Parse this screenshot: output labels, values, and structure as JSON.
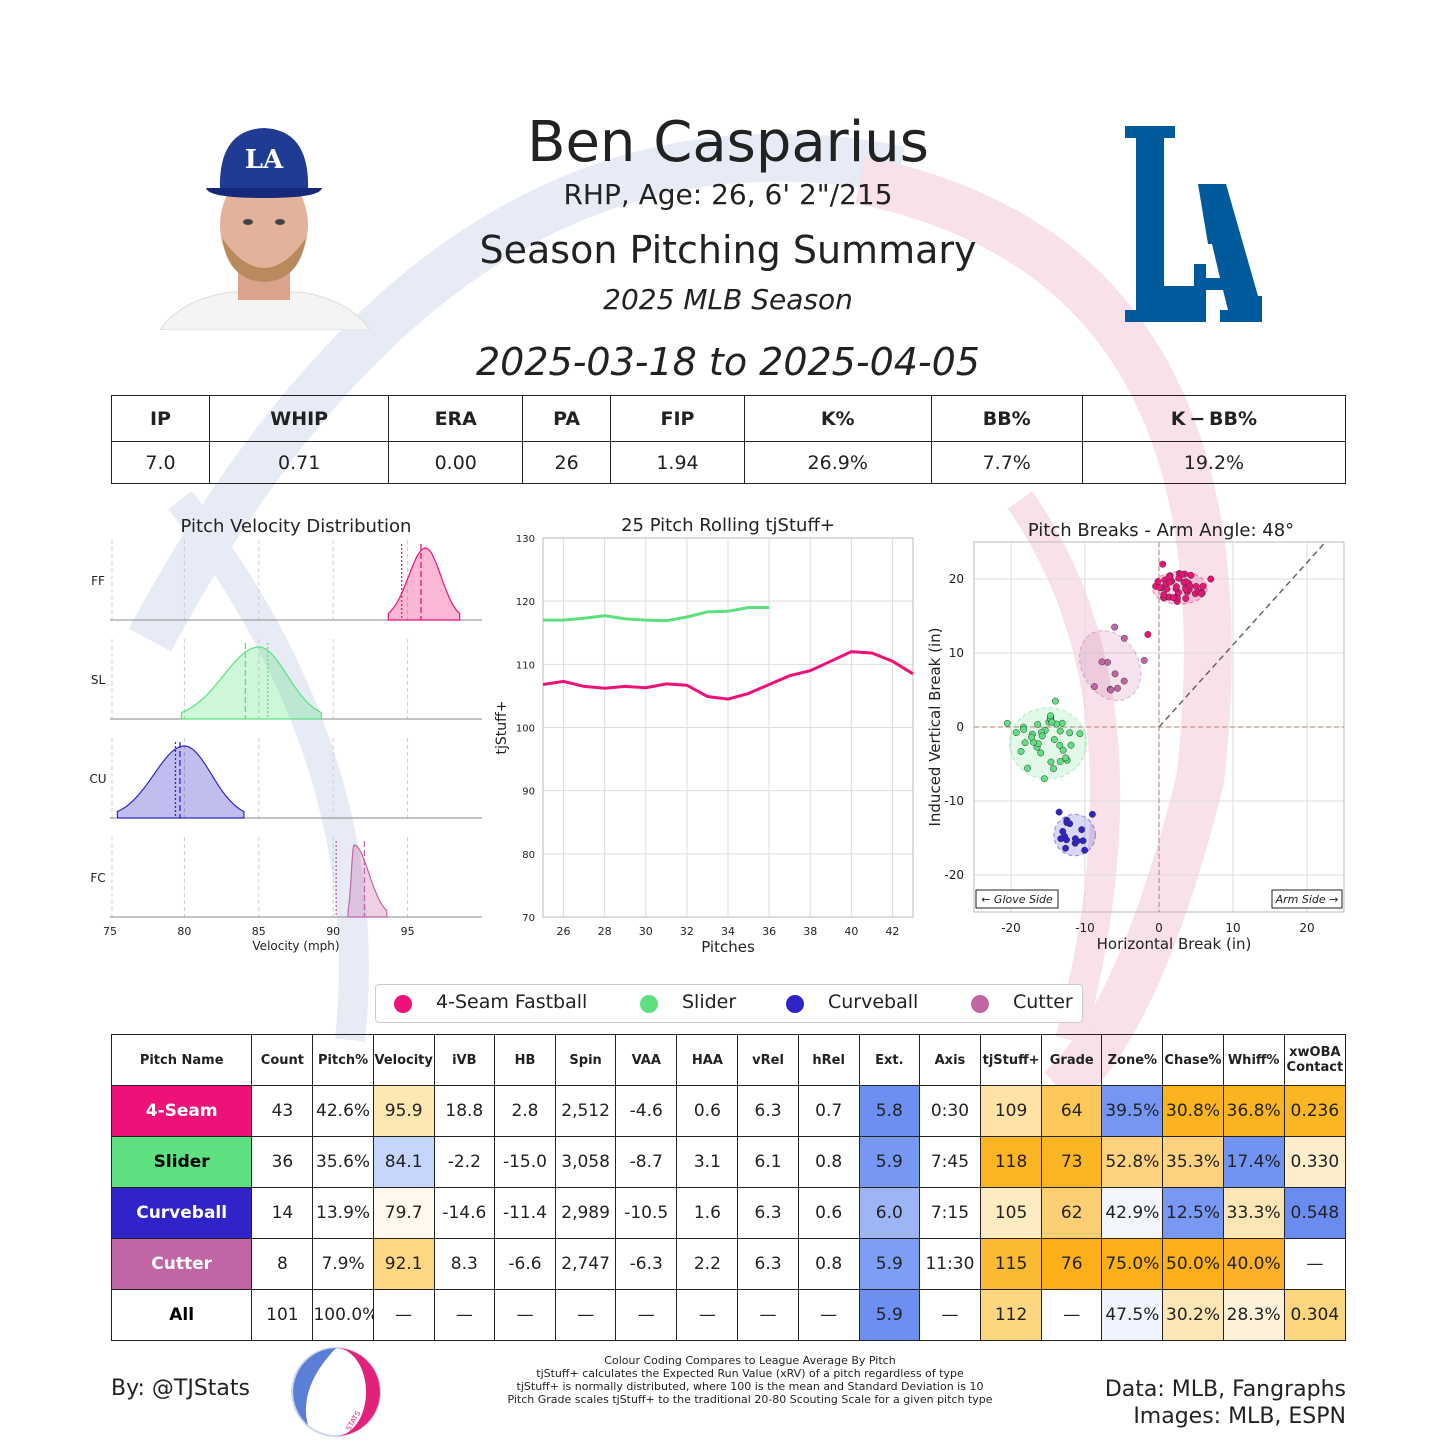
{
  "header": {
    "name": "Ben Casparius",
    "bio": "RHP, Age: 26, 6' 2\"/215",
    "summary": "Season Pitching Summary",
    "season": "2025 MLB Season",
    "date_range": "2025-03-18 to 2025-04-05",
    "team_logo_text": "LA",
    "headshot_cap_text": "LA"
  },
  "colors": {
    "fastball": "#ee1177",
    "slider": "#5de07f",
    "curveball": "#3024c9",
    "cutter": "#c265a5",
    "high": "#fab01a",
    "low": "#6b8ff0"
  },
  "season_stats": {
    "headers": [
      "IP",
      "WHIP",
      "ERA",
      "PA",
      "FIP",
      "K%",
      "BB%",
      "K − BB%"
    ],
    "values": [
      "7.0",
      "0.71",
      "0.00",
      "26",
      "1.94",
      "26.9%",
      "7.7%",
      "19.2%"
    ]
  },
  "chart_data": [
    {
      "type": "area",
      "title": "Pitch Velocity Distribution",
      "xlabel": "Velocity (mph)",
      "xlim": [
        75,
        100
      ],
      "xticks": [
        "75",
        "80",
        "85",
        "90",
        "95"
      ],
      "series": [
        {
          "name": "FF",
          "color": "#ee1177",
          "min": 93.7,
          "max": 98.5,
          "peak": 96.2,
          "mean": 95.9,
          "league": 94.6
        },
        {
          "name": "SL",
          "color": "#5de07f",
          "min": 79.8,
          "max": 89.2,
          "peak": 85.0,
          "mean": 84.1,
          "league": 85.6
        },
        {
          "name": "CU",
          "color": "#3024c9",
          "min": 75.5,
          "max": 84.0,
          "peak": 80.0,
          "mean": 79.7,
          "league": 79.4
        },
        {
          "name": "FC",
          "color": "#c265a5",
          "min": 91.0,
          "max": 93.6,
          "peak": 91.4,
          "mean": 92.1,
          "league": 90.2
        }
      ]
    },
    {
      "type": "line",
      "title": "25 Pitch Rolling tjStuff+",
      "xlabel": "Pitches",
      "ylabel": "tjStuff+",
      "xlim": [
        25,
        43
      ],
      "ylim": [
        70,
        130
      ],
      "xticks": [
        "26",
        "28",
        "30",
        "32",
        "34",
        "36",
        "38",
        "40",
        "42"
      ],
      "yticks": [
        "70",
        "80",
        "90",
        "100",
        "110",
        "120",
        "130"
      ],
      "series": [
        {
          "name": "Slider",
          "color": "#5de07f",
          "x": [
            25,
            26,
            27,
            28,
            29,
            30,
            31,
            32,
            33,
            34,
            35,
            36
          ],
          "y": [
            117.0,
            117.0,
            117.3,
            117.7,
            117.2,
            117.0,
            116.9,
            117.5,
            118.3,
            118.4,
            119.0,
            119.0
          ]
        },
        {
          "name": "4-Seam Fastball",
          "color": "#ee1177",
          "x": [
            25,
            26,
            27,
            28,
            29,
            30,
            31,
            32,
            33,
            34,
            35,
            36,
            37,
            38,
            39,
            40,
            41,
            42,
            43
          ],
          "y": [
            106.8,
            107.3,
            106.5,
            106.2,
            106.5,
            106.3,
            106.9,
            106.7,
            104.9,
            104.5,
            105.4,
            106.8,
            108.2,
            109.0,
            110.5,
            112.0,
            111.8,
            110.5,
            108.5
          ]
        }
      ]
    },
    {
      "type": "scatter",
      "title": "Pitch Breaks - Arm Angle: 48°",
      "xlabel": "Horizontal Break (in)",
      "ylabel": "Induced Vertical Break (in)",
      "xlim": [
        -25,
        25
      ],
      "ylim": [
        -25,
        25
      ],
      "xticks": [
        "-20",
        "-10",
        "0",
        "10",
        "20"
      ],
      "yticks": [
        "-20",
        "-10",
        "0",
        "10",
        "20"
      ],
      "annotations": [
        "← Glove Side",
        "Arm Side →"
      ],
      "series": [
        {
          "name": "4-Seam Fastball",
          "color": "#ee1177",
          "center": [
            2.8,
            18.8
          ],
          "spread": [
            3.7,
            2.2
          ],
          "n": 43,
          "seed": 3,
          "extra": [
            [
              -1.5,
              12.5
            ],
            [
              7.0,
              20.0
            ],
            [
              0.5,
              22.0
            ]
          ]
        },
        {
          "name": "Slider",
          "color": "#5de07f",
          "center": [
            -15.0,
            -2.2
          ],
          "spread": [
            5.2,
            4.8
          ],
          "n": 36,
          "seed": 7,
          "extra": [
            [
              -20.5,
              0.5
            ],
            [
              -14.0,
              3.5
            ],
            [
              -15.5,
              -7.0
            ]
          ]
        },
        {
          "name": "Curveball",
          "color": "#3024c9",
          "center": [
            -11.4,
            -14.6
          ],
          "spread": [
            2.8,
            2.8
          ],
          "n": 14,
          "seed": 11,
          "extra": [
            [
              -13.5,
              -11.5
            ],
            [
              -9.0,
              -11.8
            ]
          ]
        },
        {
          "name": "Cutter",
          "color": "#c265a5",
          "center": [
            -6.6,
            8.3
          ],
          "spread": [
            3.8,
            5.0
          ],
          "n": 8,
          "seed": 5,
          "extra": [
            [
              -6.0,
              13.5
            ],
            [
              -2.0,
              9.0
            ],
            [
              -6.5,
              5.0
            ]
          ]
        }
      ]
    }
  ],
  "legend": [
    {
      "label": "4-Seam Fastball",
      "color": "#ee1177"
    },
    {
      "label": "Slider",
      "color": "#5de07f"
    },
    {
      "label": "Curveball",
      "color": "#3024c9"
    },
    {
      "label": "Cutter",
      "color": "#c265a5"
    }
  ],
  "pitch_table": {
    "headers": [
      "Pitch Name",
      "Count",
      "Pitch%",
      "Velocity",
      "iVB",
      "HB",
      "Spin",
      "VAA",
      "HAA",
      "vRel",
      "hRel",
      "Ext.",
      "Axis",
      "tjStuff+",
      "Grade",
      "Zone%",
      "Chase%",
      "Whiff%",
      "xwOBA Contact"
    ],
    "rows": [
      {
        "name": "4-Seam",
        "name_bg": "#ee1177",
        "name_color": "#ffffff",
        "cells": [
          "43",
          "42.6%",
          "95.9",
          "18.8",
          "2.8",
          "2,512",
          "-4.6",
          "0.6",
          "6.3",
          "0.7",
          "5.8",
          "0:30",
          "109",
          "64",
          "39.5%",
          "30.8%",
          "36.8%",
          "0.236"
        ],
        "bgs": [
          "",
          "",
          "#fde7b2",
          "",
          "",
          "",
          "",
          "",
          "",
          "",
          "#6d8ff1",
          "",
          "#fee2a6",
          "#fdc75a",
          "#7597f3",
          "#fbb31f",
          "#fbb421",
          "#fbb626"
        ]
      },
      {
        "name": "Slider",
        "name_bg": "#5de07f",
        "name_color": "#000000",
        "cells": [
          "36",
          "35.6%",
          "84.1",
          "-2.2",
          "-15.0",
          "3,058",
          "-8.7",
          "3.1",
          "6.1",
          "0.8",
          "5.9",
          "7:45",
          "118",
          "73",
          "52.8%",
          "35.3%",
          "17.4%",
          "0.330"
        ],
        "bgs": [
          "",
          "",
          "#c6d5fb",
          "",
          "",
          "",
          "",
          "",
          "",
          "",
          "#7697f4",
          "",
          "#fbb422",
          "#fbb523",
          "#fcd27e",
          "#fcd27e",
          "#7194f3",
          "#fdedcb"
        ]
      },
      {
        "name": "Curveball",
        "name_bg": "#3024c9",
        "name_color": "#ffffff",
        "cells": [
          "14",
          "13.9%",
          "79.7",
          "-14.6",
          "-11.4",
          "2,989",
          "-10.5",
          "1.6",
          "6.3",
          "0.6",
          "6.0",
          "7:15",
          "105",
          "62",
          "42.9%",
          "12.5%",
          "33.3%",
          "0.548"
        ],
        "bgs": [
          "",
          "",
          "#fef9ec",
          "",
          "",
          "",
          "",
          "",
          "",
          "",
          "#9db4f6",
          "",
          "#fdebc1",
          "#fdcf74",
          "#f3f6fe",
          "#7898f3",
          "#fde6b6",
          "#6a8cf1"
        ]
      },
      {
        "name": "Cutter",
        "name_bg": "#c265a5",
        "name_color": "#ffffff",
        "cells": [
          "8",
          "7.9%",
          "92.1",
          "8.3",
          "-6.6",
          "2,747",
          "-6.3",
          "2.2",
          "6.3",
          "0.8",
          "5.9",
          "11:30",
          "115",
          "76",
          "75.0%",
          "50.0%",
          "40.0%",
          "—"
        ],
        "bgs": [
          "",
          "",
          "#fdd784",
          "",
          "",
          "",
          "",
          "",
          "",
          "",
          "#7e9df4",
          "",
          "#fbba34",
          "#fbb01a",
          "#fbb01a",
          "#fbb01a",
          "#fbb22a",
          ""
        ]
      },
      {
        "name": "All",
        "name_bg": "#ffffff",
        "name_color": "#000000",
        "cells": [
          "101",
          "100.0%",
          "—",
          "—",
          "—",
          "—",
          "—",
          "—",
          "—",
          "—",
          "5.9",
          "—",
          "112",
          "—",
          "47.5%",
          "30.2%",
          "28.3%",
          "0.304"
        ],
        "bgs": [
          "",
          "",
          "",
          "",
          "",
          "",
          "",
          "",
          "",
          "",
          "#6d8ff1",
          "",
          "#fdd780",
          "",
          "#f0f4fe",
          "#fde6b6",
          "#fdf1d9",
          "#fdd780"
        ]
      }
    ]
  },
  "footer": {
    "byline": "By: @TJStats",
    "notes": [
      "Colour Coding Compares to League Average By Pitch",
      "tjStuff+ calculates the Expected Run Value (xRV) of a pitch regardless of type",
      "tjStuff+ is normally distributed, where 100 is the mean and Standard Deviation is 10",
      "Pitch Grade scales tjStuff+ to the traditional 20-80 Scouting Scale for a given pitch type"
    ],
    "data_source": "Data: MLB, Fangraphs",
    "image_source": "Images: MLB, ESPN",
    "logo_text": "STATS"
  }
}
